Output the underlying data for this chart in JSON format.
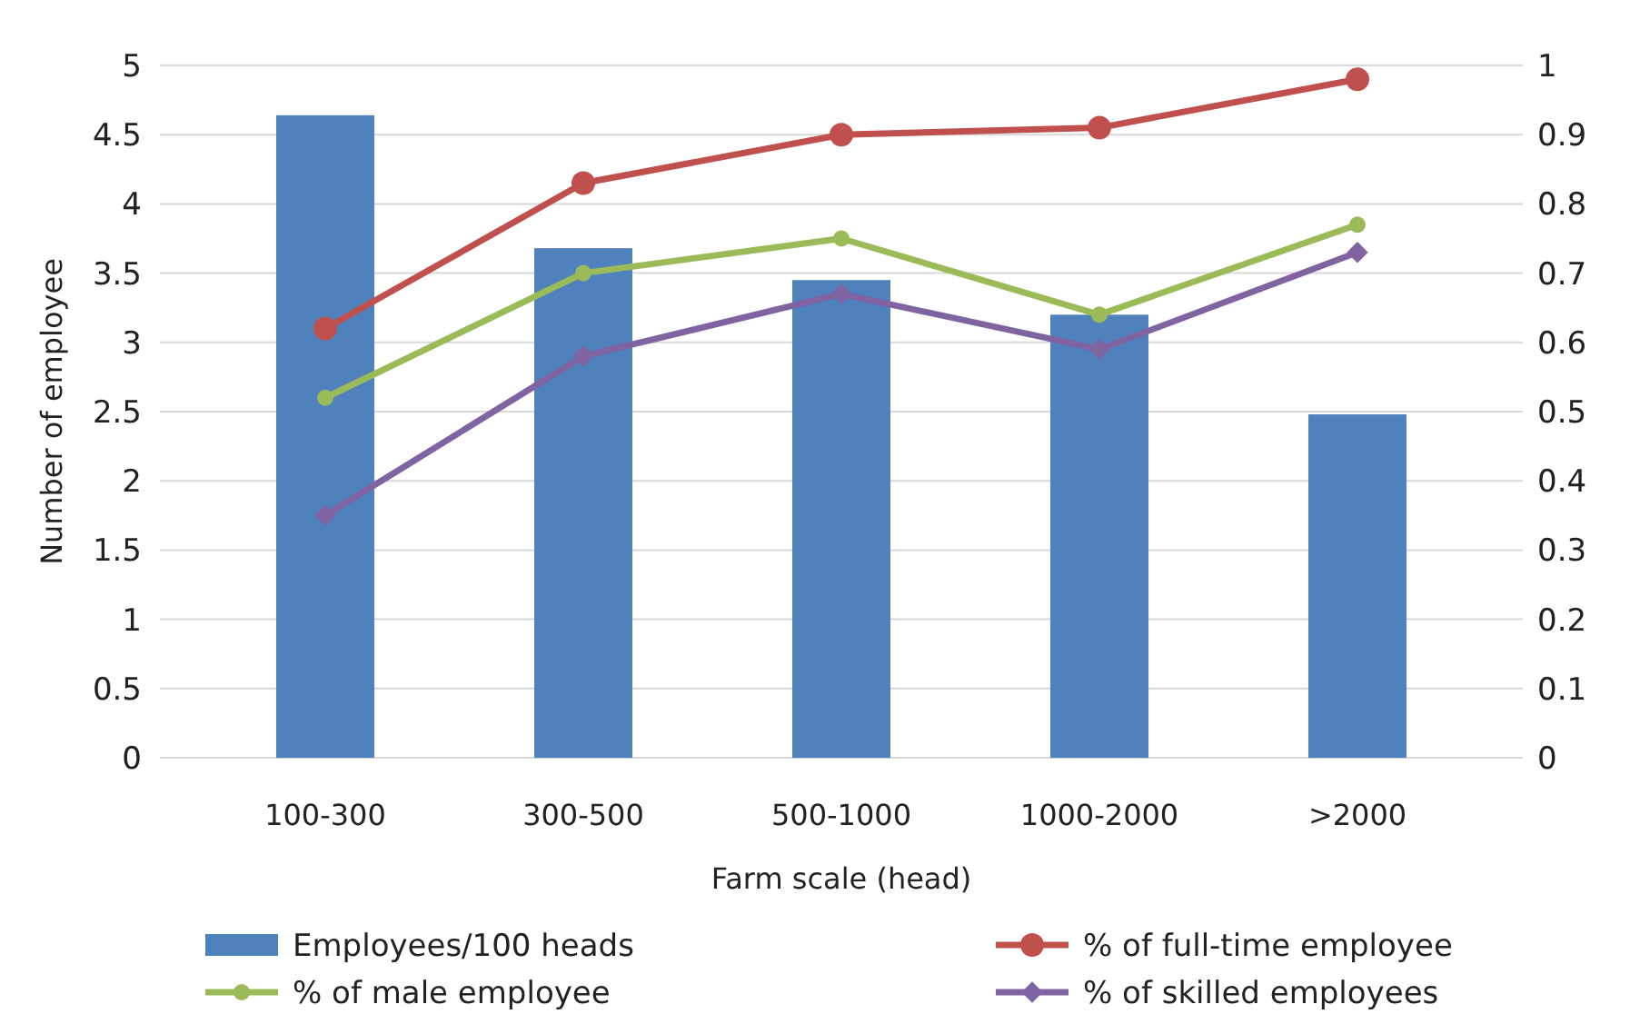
{
  "chart_data": {
    "type": "bar",
    "xlabel": "Farm scale (head)",
    "ylabel": "Number of employee",
    "categories": [
      "100-300",
      "300-500",
      "500-1000",
      "1000-2000",
      ">2000"
    ],
    "series": [
      {
        "name": "Employees/100 heads",
        "color": "#4f81bd",
        "values": [
          4.64,
          3.68,
          3.45,
          3.2,
          2.48
        ]
      },
      {
        "name": "% of full-time employee",
        "type": "line",
        "axis": "y2",
        "marker": "circle",
        "color": "#c0504d",
        "values": [
          0.62,
          0.83,
          0.9,
          0.91,
          0.98
        ]
      },
      {
        "name": "% of male employee",
        "type": "line",
        "axis": "y2",
        "marker": "circle",
        "color": "#9bbb59",
        "values": [
          0.52,
          0.7,
          0.75,
          0.64,
          0.77
        ]
      },
      {
        "name": "% of skilled employees",
        "type": "line",
        "axis": "y2",
        "marker": "diamond",
        "color": "#8064a2",
        "values": [
          0.35,
          0.58,
          0.67,
          0.59,
          0.73
        ]
      }
    ],
    "ylim": [
      0,
      5
    ],
    "yticks": [
      0,
      0.5,
      1,
      1.5,
      2,
      2.5,
      3,
      3.5,
      4,
      4.5,
      5
    ],
    "y2lim": [
      0,
      1
    ],
    "y2ticks": [
      0,
      0.1,
      0.2,
      0.3,
      0.4,
      0.5,
      0.6,
      0.7,
      0.8,
      0.9,
      1
    ],
    "grid": "y",
    "legend": "bottom"
  }
}
